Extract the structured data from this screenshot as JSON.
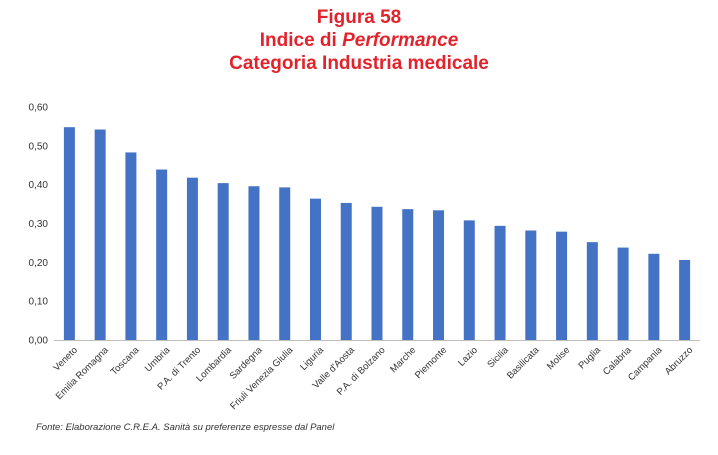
{
  "colors": {
    "title": "#e3232c",
    "bar": "#4472c4",
    "axis": "#bfbfbf",
    "text": "#333333"
  },
  "title": {
    "line1": "Figura 58",
    "line2_prefix": "Indice di ",
    "line2_italic": "Performance",
    "line3": "Categoria Industria medicale"
  },
  "chart_data": {
    "type": "bar",
    "title": "Figura 58 Indice di Performance Categoria Industria medicale",
    "xlabel": "",
    "ylabel": "",
    "ylim": [
      0,
      0.6
    ],
    "yticks": [
      "0,00",
      "0,10",
      "0,20",
      "0,30",
      "0,40",
      "0,50",
      "0,60"
    ],
    "grid": false,
    "categories": [
      "Veneto",
      "Emilia Romagna",
      "Toscana",
      "Umbria",
      "P.A. di Trento",
      "Lombardia",
      "Sardegna",
      "Friuli Venezia Giulia",
      "Liguria",
      "Valle d'Aosta",
      "P.A. di Bolzano",
      "Marche",
      "Piemonte",
      "Lazio",
      "Sicilia",
      "Basilicata",
      "Molise",
      "Puglia",
      "Calabria",
      "Campania",
      "Abruzzo"
    ],
    "values": [
      0.548,
      0.542,
      0.483,
      0.439,
      0.418,
      0.404,
      0.396,
      0.393,
      0.364,
      0.353,
      0.343,
      0.337,
      0.334,
      0.308,
      0.294,
      0.282,
      0.279,
      0.252,
      0.238,
      0.222,
      0.206
    ]
  },
  "source": "Fonte: Elaborazione C.R.E.A. Sanità su preferenze espresse dal Panel"
}
